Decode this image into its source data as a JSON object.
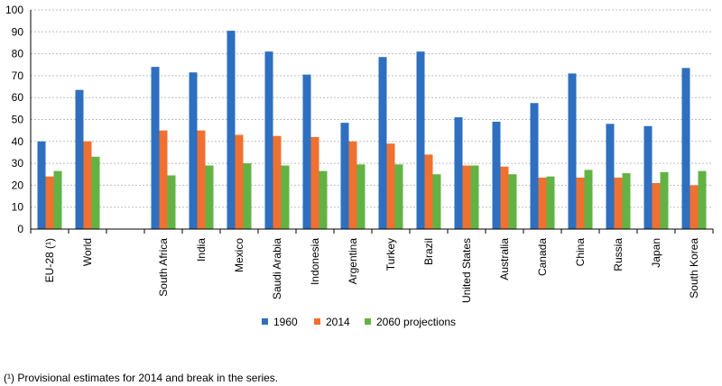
{
  "chart_data": {
    "type": "bar",
    "ylim": [
      0,
      100
    ],
    "yticks": [
      0,
      10,
      20,
      30,
      40,
      50,
      60,
      70,
      80,
      90,
      100
    ],
    "grid": true,
    "legend_position": "bottom",
    "categories": [
      "EU-28 (¹)",
      "World",
      "",
      "South Africa",
      "India",
      "Mexico",
      "Saudi Arabia",
      "Indonesia",
      "Argentina",
      "Turkey",
      "Brazil",
      "United States",
      "Australia",
      "Canada",
      "China",
      "Russia",
      "Japan",
      "South Korea"
    ],
    "series": [
      {
        "name": "1960",
        "color": "#2e6fc0",
        "values": [
          40,
          63.5,
          null,
          74,
          71.5,
          90.5,
          81,
          70.5,
          48.5,
          78.5,
          81,
          51,
          49,
          57.5,
          71,
          48,
          47,
          73.5
        ]
      },
      {
        "name": "2014",
        "color": "#ef7131",
        "values": [
          24,
          40,
          null,
          45,
          45,
          43,
          42.5,
          42,
          40,
          39,
          34,
          29,
          28.5,
          23.5,
          23.5,
          23.5,
          21,
          20
        ]
      },
      {
        "name": "2060 projections",
        "color": "#62b344",
        "values": [
          26.5,
          33,
          null,
          24.5,
          29,
          30,
          29,
          26.5,
          29.5,
          29.5,
          25,
          29,
          25,
          24,
          27,
          25.5,
          26,
          26.5
        ]
      }
    ]
  },
  "footnote": "(¹) Provisional estimates for 2014 and break in the series."
}
